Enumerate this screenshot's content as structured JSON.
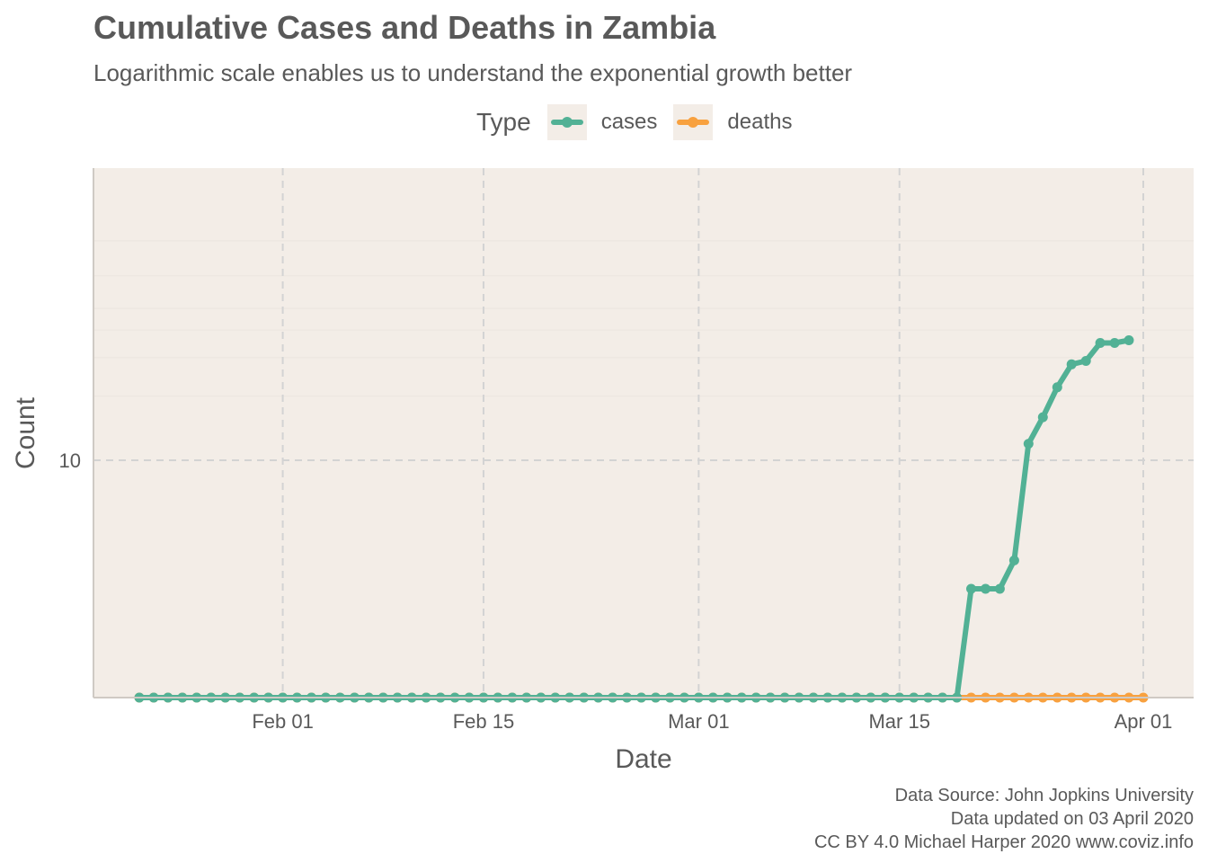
{
  "chart_data": {
    "type": "line",
    "title": "Cumulative Cases and Deaths in Zambia",
    "subtitle": "Logarithmic scale enables us to understand the exponential growth better",
    "xlabel": "Date",
    "ylabel": "Count",
    "y_scale": "log10",
    "xlim": [
      "2020-01-22",
      "2020-04-02"
    ],
    "ylim": [
      1,
      100
    ],
    "x_ticks": [
      {
        "date": "2020-02-01",
        "label": "Feb 01"
      },
      {
        "date": "2020-02-15",
        "label": "Feb 15"
      },
      {
        "date": "2020-03-01",
        "label": "Mar 01"
      },
      {
        "date": "2020-03-15",
        "label": "Mar 15"
      },
      {
        "date": "2020-04-01",
        "label": "Apr 01"
      }
    ],
    "y_ticks": [
      {
        "value": 10,
        "label": "10"
      }
    ],
    "grid": true,
    "legend": {
      "title": "Type",
      "position": "top"
    },
    "series": [
      {
        "name": "cases",
        "color": "#52b195",
        "start_date": "2020-01-22",
        "values": [
          0,
          0,
          0,
          0,
          0,
          0,
          0,
          0,
          0,
          0,
          0,
          0,
          0,
          0,
          0,
          0,
          0,
          0,
          0,
          0,
          0,
          0,
          0,
          0,
          0,
          0,
          0,
          0,
          0,
          0,
          0,
          0,
          0,
          0,
          0,
          0,
          0,
          0,
          0,
          0,
          0,
          0,
          0,
          0,
          0,
          0,
          0,
          0,
          0,
          0,
          0,
          0,
          0,
          0,
          0,
          0,
          0,
          0,
          2,
          2,
          2,
          3,
          12,
          16,
          22,
          28,
          29,
          35,
          35,
          36
        ]
      },
      {
        "name": "deaths",
        "color": "#f8a13f",
        "start_date": "2020-01-22",
        "values": [
          0,
          0,
          0,
          0,
          0,
          0,
          0,
          0,
          0,
          0,
          0,
          0,
          0,
          0,
          0,
          0,
          0,
          0,
          0,
          0,
          0,
          0,
          0,
          0,
          0,
          0,
          0,
          0,
          0,
          0,
          0,
          0,
          0,
          0,
          0,
          0,
          0,
          0,
          0,
          0,
          0,
          0,
          0,
          0,
          0,
          0,
          0,
          0,
          0,
          0,
          0,
          0,
          0,
          0,
          0,
          0,
          0,
          0,
          0,
          0,
          0,
          0,
          0,
          0,
          0,
          0,
          0,
          0,
          0,
          0,
          0
        ]
      }
    ]
  },
  "caption": {
    "line1": "Data Source: John Jopkins University",
    "line2": "Data updated on 03 April 2020",
    "line3": "CC BY 4.0 Michael Harper 2020 www.coviz.info"
  },
  "colors": {
    "panel_background": "#f3ede7",
    "text": "#595959",
    "grid_major": "#d3d3d3"
  }
}
